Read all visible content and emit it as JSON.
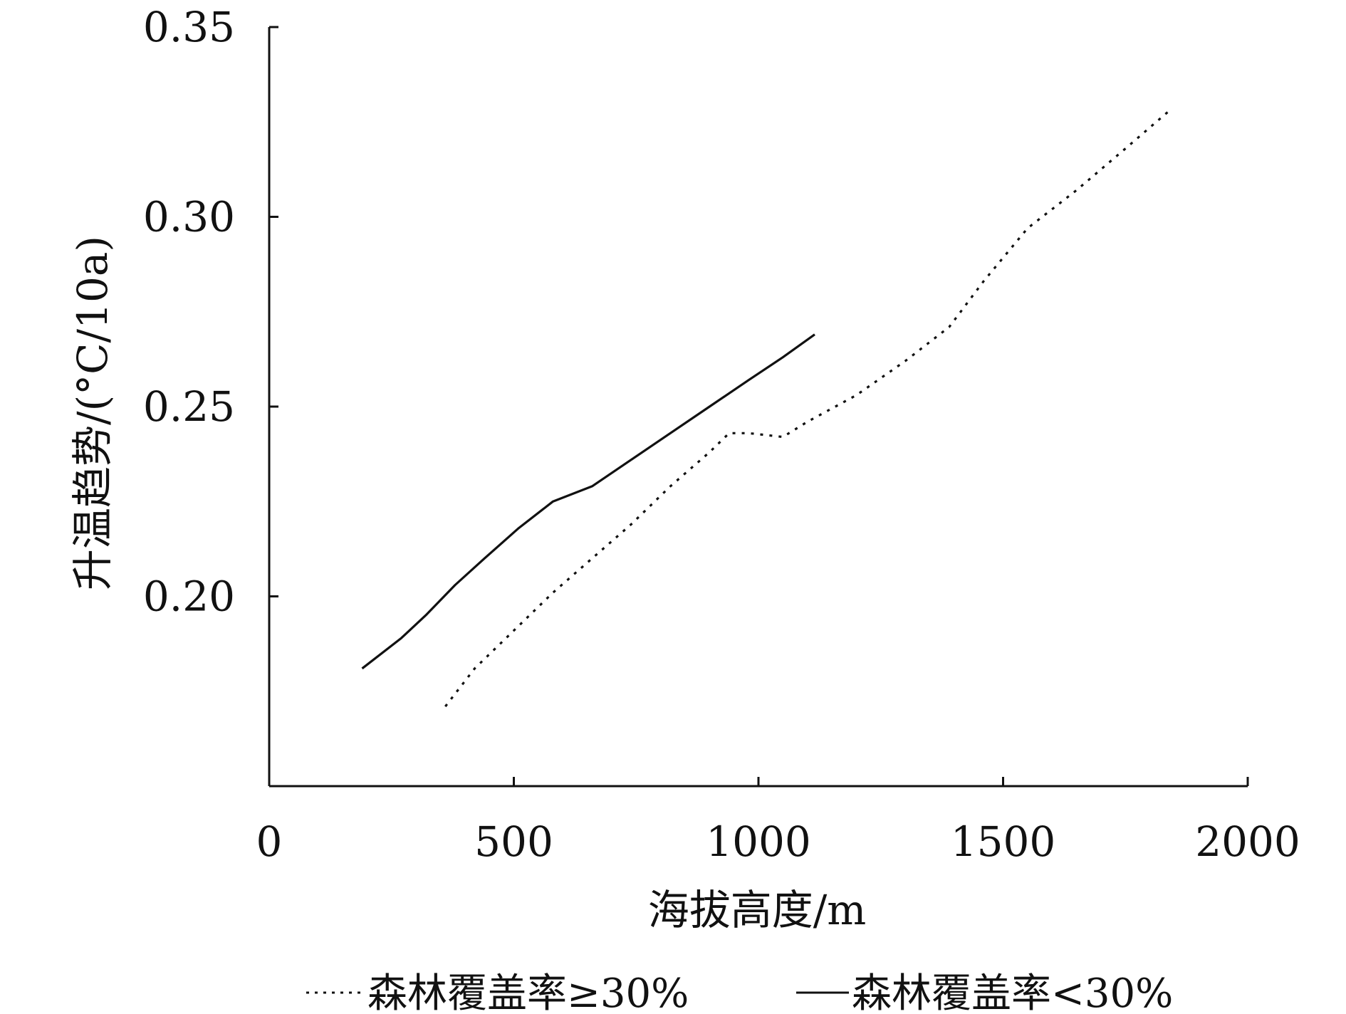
{
  "chart_data": {
    "type": "line",
    "title": "",
    "xlabel": "海拔高度/m",
    "ylabel": "升温趋势/(°C/10a)",
    "xlim": [
      0,
      2000
    ],
    "ylim": [
      0.15,
      0.35
    ],
    "x_ticks": [
      "0",
      "500",
      "1000",
      "1500",
      "2000"
    ],
    "y_ticks": [
      "0.20",
      "0.25",
      "0.30",
      "0.35"
    ],
    "grid": false,
    "legend_position": "bottom",
    "line_color": "#111111",
    "series": [
      {
        "name": "森林覆盖率≥30%",
        "style": "dotted",
        "points": [
          [
            360,
            0.171
          ],
          [
            420,
            0.181
          ],
          [
            500,
            0.191
          ],
          [
            580,
            0.201
          ],
          [
            660,
            0.21
          ],
          [
            740,
            0.219
          ],
          [
            820,
            0.229
          ],
          [
            900,
            0.238
          ],
          [
            940,
            0.243
          ],
          [
            980,
            0.243
          ],
          [
            1050,
            0.242
          ],
          [
            1100,
            0.246
          ],
          [
            1200,
            0.253
          ],
          [
            1300,
            0.262
          ],
          [
            1390,
            0.271
          ],
          [
            1460,
            0.283
          ],
          [
            1550,
            0.297
          ],
          [
            1650,
            0.307
          ],
          [
            1750,
            0.318
          ],
          [
            1840,
            0.328
          ]
        ]
      },
      {
        "name": "森林覆盖率<30%",
        "style": "solid",
        "points": [
          [
            190,
            0.181
          ],
          [
            270,
            0.189
          ],
          [
            320,
            0.195
          ],
          [
            380,
            0.203
          ],
          [
            440,
            0.21
          ],
          [
            510,
            0.218
          ],
          [
            580,
            0.225
          ],
          [
            660,
            0.229
          ],
          [
            740,
            0.236
          ],
          [
            820,
            0.243
          ],
          [
            900,
            0.25
          ],
          [
            980,
            0.257
          ],
          [
            1050,
            0.263
          ],
          [
            1115,
            0.269
          ]
        ]
      }
    ]
  }
}
